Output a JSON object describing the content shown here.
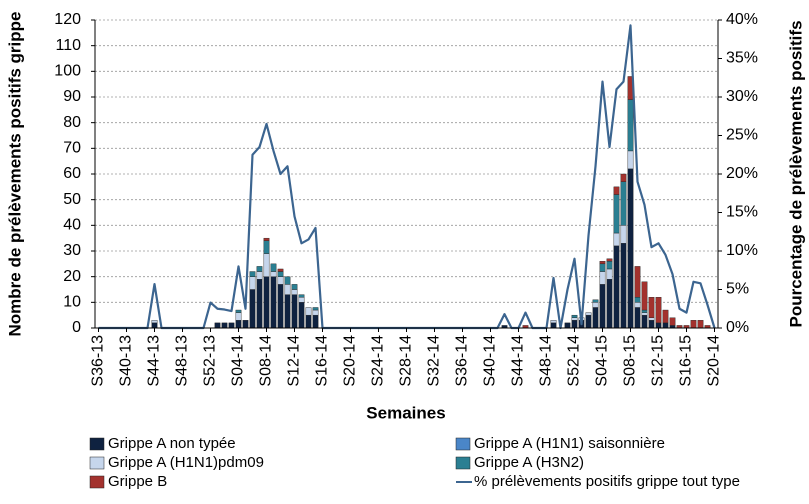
{
  "chart_data": {
    "type": "bar",
    "xlabel": "Semaines",
    "ylabel": "Nombre de prélèvements positifs grippe",
    "y2label": "Pourcentage de prélèvements positifs",
    "stacked": true,
    "grid": true,
    "categories": [
      "S36-13",
      null,
      null,
      null,
      "S40-13",
      null,
      null,
      null,
      "S44-13",
      null,
      null,
      null,
      "S48-13",
      null,
      null,
      null,
      "S52-13",
      null,
      null,
      null,
      "S04-14",
      null,
      null,
      null,
      "S08-14",
      null,
      null,
      null,
      "S12-14",
      null,
      null,
      null,
      "S16-14",
      null,
      null,
      null,
      "S20-14",
      null,
      null,
      null,
      "S24-14",
      null,
      null,
      null,
      "S28-14",
      null,
      null,
      null,
      "S32-14",
      null,
      null,
      null,
      "S36-14",
      null,
      null,
      null,
      "S40-14",
      null,
      null,
      null,
      "S44-14",
      null,
      null,
      null,
      "S48-14",
      null,
      null,
      null,
      "S52-14",
      null,
      null,
      null,
      "S04-15",
      null,
      null,
      null,
      "S08-15",
      null,
      null,
      null,
      "S12-15",
      null,
      null,
      null,
      "S16-15",
      null,
      null,
      null,
      "S20-14"
    ],
    "ylim": [
      0,
      120
    ],
    "yticks": [
      0,
      10,
      20,
      30,
      40,
      50,
      60,
      70,
      80,
      90,
      100,
      110,
      120
    ],
    "y2lim": [
      0,
      40
    ],
    "y2ticks": [
      {
        "value": 0,
        "label": "0%"
      },
      {
        "value": 5,
        "label": "5%"
      },
      {
        "value": 10,
        "label": "10%"
      },
      {
        "value": 15,
        "label": "15%"
      },
      {
        "value": 20,
        "label": "20%"
      },
      {
        "value": 25,
        "label": "25%"
      },
      {
        "value": 30,
        "label": "30%"
      },
      {
        "value": 35,
        "label": "35%"
      },
      {
        "value": 40,
        "label": "40%"
      }
    ],
    "series": [
      {
        "name": "Grippe A non typée",
        "type": "bar",
        "color": "#0f2240",
        "values": [
          0,
          0,
          0,
          0,
          0,
          0,
          0,
          0,
          2,
          0,
          0,
          0,
          0,
          0,
          0,
          0,
          0,
          2,
          2,
          2,
          3,
          3,
          15,
          19,
          20,
          20,
          17,
          13,
          13,
          10,
          5,
          5,
          0,
          0,
          0,
          0,
          0,
          0,
          0,
          0,
          0,
          0,
          0,
          0,
          0,
          0,
          0,
          0,
          0,
          0,
          0,
          0,
          0,
          0,
          0,
          0,
          0,
          0,
          1,
          0,
          0,
          0,
          0,
          0,
          0,
          2,
          0,
          2,
          3,
          3,
          5,
          8,
          17,
          19,
          32,
          33,
          62,
          8,
          5,
          3,
          2,
          2,
          1,
          0,
          0,
          0,
          0,
          0,
          0
        ]
      },
      {
        "name": "Grippe A (H1N1) saisonnière",
        "type": "bar",
        "color": "#4a86c8",
        "values": [
          0,
          0,
          0,
          0,
          0,
          0,
          0,
          0,
          0,
          0,
          0,
          0,
          0,
          0,
          0,
          0,
          0,
          0,
          0,
          0,
          0,
          0,
          0,
          0,
          0,
          0,
          0,
          0,
          0,
          0,
          0,
          0,
          0,
          0,
          0,
          0,
          0,
          0,
          0,
          0,
          0,
          0,
          0,
          0,
          0,
          0,
          0,
          0,
          0,
          0,
          0,
          0,
          0,
          0,
          0,
          0,
          0,
          0,
          0,
          0,
          0,
          0,
          0,
          0,
          0,
          0,
          0,
          0,
          0,
          0,
          0,
          0,
          0,
          0,
          0,
          0,
          0,
          0,
          0,
          0,
          0,
          0,
          0,
          0,
          0,
          0,
          0,
          0,
          0
        ]
      },
      {
        "name": "Grippe A (H1N1)pdm09",
        "type": "bar",
        "color": "#c6d6ec",
        "values": [
          0,
          0,
          0,
          0,
          0,
          0,
          0,
          0,
          1,
          0,
          0,
          0,
          0,
          0,
          0,
          0,
          0,
          0,
          0,
          0,
          3,
          0,
          5,
          3,
          9,
          2,
          3,
          4,
          2,
          2,
          3,
          2,
          0,
          0,
          0,
          0,
          0,
          0,
          0,
          0,
          0,
          0,
          0,
          0,
          0,
          0,
          0,
          0,
          0,
          0,
          0,
          0,
          0,
          0,
          0,
          0,
          0,
          0,
          0,
          0,
          0,
          0,
          0,
          0,
          0,
          1,
          0,
          0,
          1,
          1,
          1,
          2,
          5,
          4,
          5,
          7,
          7,
          2,
          1,
          1,
          0,
          0,
          0,
          0,
          0,
          0,
          0,
          0,
          0
        ]
      },
      {
        "name": "Grippe A (H3N2)",
        "type": "bar",
        "color": "#2b7f92",
        "values": [
          0,
          0,
          0,
          0,
          0,
          0,
          0,
          0,
          0,
          0,
          0,
          0,
          0,
          0,
          0,
          0,
          0,
          0,
          0,
          0,
          1,
          0,
          2,
          2,
          5,
          3,
          2,
          3,
          2,
          1,
          0,
          1,
          0,
          0,
          0,
          0,
          0,
          0,
          0,
          0,
          0,
          0,
          0,
          0,
          0,
          0,
          0,
          0,
          0,
          0,
          0,
          0,
          0,
          0,
          0,
          0,
          0,
          0,
          0,
          0,
          0,
          0,
          0,
          0,
          0,
          0,
          0,
          0,
          1,
          0,
          0,
          1,
          3,
          3,
          15,
          17,
          20,
          2,
          1,
          0,
          0,
          0,
          0,
          0,
          0,
          0,
          0,
          0,
          0
        ]
      },
      {
        "name": "Grippe B",
        "type": "bar",
        "color": "#a3322e",
        "values": [
          0,
          0,
          0,
          0,
          0,
          0,
          0,
          0,
          0,
          0,
          0,
          0,
          0,
          0,
          0,
          0,
          0,
          0,
          0,
          0,
          0,
          0,
          0,
          0,
          1,
          0,
          1,
          0,
          0,
          0,
          0,
          0,
          0,
          0,
          0,
          0,
          0,
          0,
          0,
          0,
          0,
          0,
          0,
          0,
          0,
          0,
          0,
          0,
          0,
          0,
          0,
          0,
          0,
          0,
          0,
          0,
          0,
          0,
          0,
          0,
          0,
          1,
          0,
          0,
          0,
          0,
          0,
          0,
          0,
          0,
          0,
          0,
          1,
          1,
          3,
          3,
          9,
          12,
          11,
          8,
          10,
          5,
          3,
          1,
          1,
          3,
          3,
          1,
          0
        ]
      },
      {
        "name": "% prélèvements positifs grippe tout type",
        "type": "line",
        "axis": "y2",
        "color": "#3c6590",
        "values": [
          0,
          0,
          0,
          0,
          0,
          0,
          0,
          0,
          5.7,
          0,
          0,
          0,
          0,
          0,
          0,
          0,
          3.3,
          2.5,
          2.4,
          2.2,
          8,
          2.5,
          22.5,
          23.5,
          26.5,
          23,
          20,
          21,
          14.5,
          11,
          11.5,
          13,
          0,
          0,
          0,
          0,
          0,
          0,
          0,
          0,
          0,
          0,
          0,
          0,
          0,
          0,
          0,
          0,
          0,
          0,
          0,
          0,
          0,
          0,
          0,
          0,
          0,
          0,
          1.8,
          0,
          0,
          2,
          0,
          0,
          0,
          6.5,
          0,
          5,
          9,
          0.5,
          12,
          21,
          32,
          23.5,
          31,
          32,
          39.3,
          19,
          16,
          10.5,
          11,
          9.5,
          7,
          2.5,
          2,
          6,
          5.8,
          3,
          0
        ]
      }
    ]
  }
}
